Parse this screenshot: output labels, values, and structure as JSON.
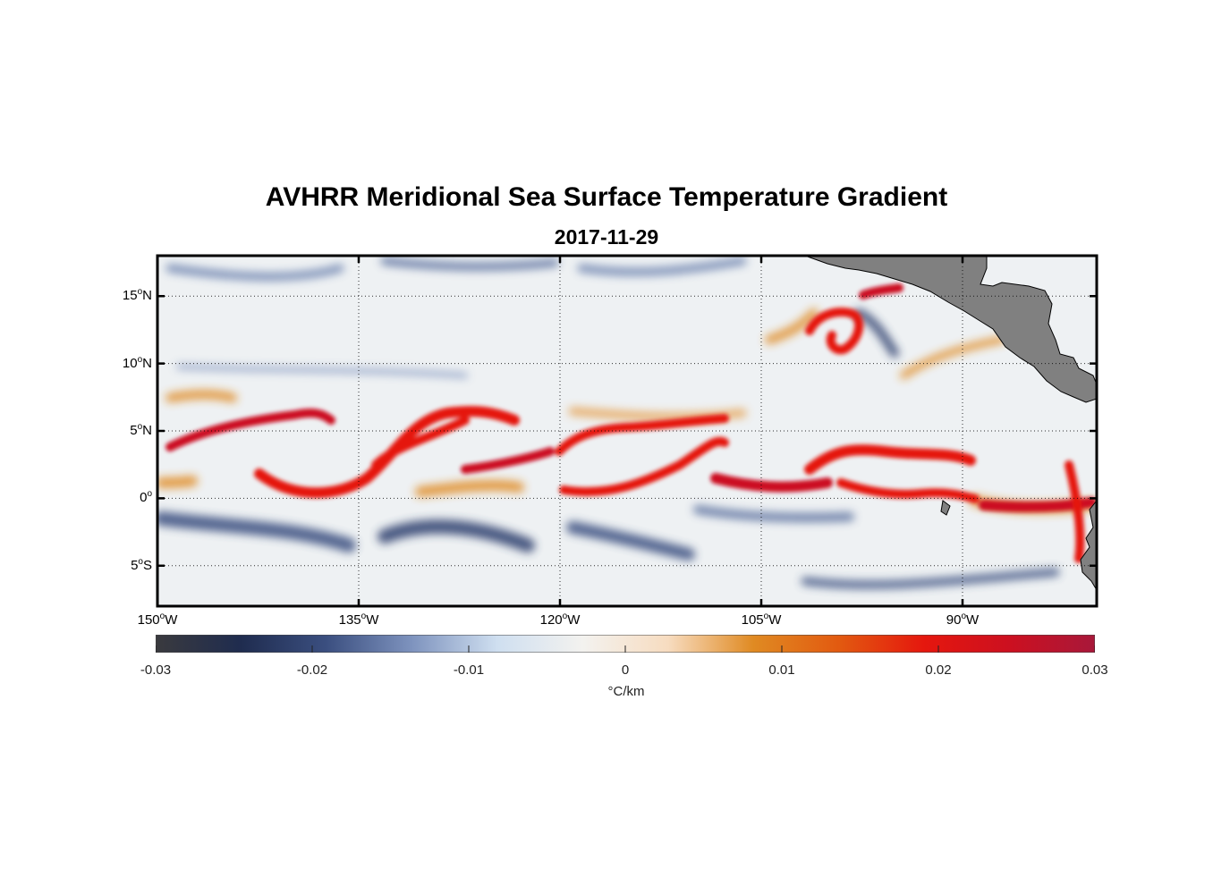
{
  "title": "AVHRR Meridional Sea Surface Temperature Gradient",
  "subtitle": "2017-11-29",
  "map": {
    "lon_range": [
      -150,
      -80
    ],
    "lat_range": [
      -8,
      18
    ],
    "land_color": "#808080",
    "y_ticks": [
      {
        "lat": 15,
        "num": "15",
        "deg": "o",
        "hem": "N"
      },
      {
        "lat": 10,
        "num": "10",
        "deg": "o",
        "hem": "N"
      },
      {
        "lat": 5,
        "num": "5",
        "deg": "o",
        "hem": "N"
      },
      {
        "lat": 0,
        "num": "0",
        "deg": "o",
        "hem": ""
      },
      {
        "lat": -5,
        "num": "5",
        "deg": "o",
        "hem": "S"
      }
    ],
    "x_ticks": [
      {
        "lon": -150,
        "num": "150",
        "deg": "o",
        "hem": "W"
      },
      {
        "lon": -135,
        "num": "135",
        "deg": "o",
        "hem": "W"
      },
      {
        "lon": -120,
        "num": "120",
        "deg": "o",
        "hem": "W"
      },
      {
        "lon": -105,
        "num": "105",
        "deg": "o",
        "hem": "W"
      },
      {
        "lon": -90,
        "num": "90",
        "deg": "o",
        "hem": "W"
      }
    ]
  },
  "colorbar": {
    "min": -0.03,
    "max": 0.03,
    "ticks": [
      "-0.03",
      "-0.02",
      "-0.01",
      "0",
      "0.01",
      "0.02",
      "0.03"
    ],
    "units": "°C/km",
    "colors": [
      "#3a3a3e",
      "#1f2c4f",
      "#3b4f80",
      "#7e93be",
      "#cfdff0",
      "#f3f2ef",
      "#f7dcc0",
      "#e08a22",
      "#e25a10",
      "#e5170e",
      "#cc1020",
      "#a8183a"
    ]
  }
}
